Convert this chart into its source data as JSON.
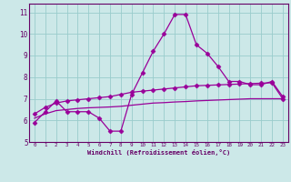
{
  "xlabel": "Windchill (Refroidissement éolien,°C)",
  "x_hours": [
    0,
    1,
    2,
    3,
    4,
    5,
    6,
    7,
    8,
    9,
    10,
    11,
    12,
    13,
    14,
    15,
    16,
    17,
    18,
    19,
    20,
    21,
    22,
    23
  ],
  "line1": [
    5.9,
    6.4,
    6.9,
    6.4,
    6.4,
    6.4,
    6.1,
    5.5,
    5.5,
    7.2,
    8.2,
    9.2,
    10.0,
    10.9,
    10.9,
    9.5,
    9.1,
    8.5,
    7.8,
    7.8,
    7.65,
    7.65,
    7.8,
    7.1
  ],
  "line2": [
    6.3,
    6.6,
    6.8,
    6.9,
    6.95,
    7.0,
    7.05,
    7.1,
    7.2,
    7.3,
    7.35,
    7.4,
    7.45,
    7.5,
    7.55,
    7.6,
    7.62,
    7.64,
    7.66,
    7.68,
    7.7,
    7.72,
    7.74,
    7.0
  ],
  "line3": [
    6.1,
    6.3,
    6.45,
    6.5,
    6.55,
    6.58,
    6.6,
    6.62,
    6.65,
    6.7,
    6.75,
    6.8,
    6.82,
    6.85,
    6.87,
    6.9,
    6.92,
    6.94,
    6.96,
    6.98,
    7.0,
    7.0,
    7.0,
    7.0
  ],
  "line_color": "#990099",
  "bg_color": "#cce8e8",
  "grid_color": "#99cccc",
  "axis_color": "#660066",
  "spine_color": "#660066",
  "ylim": [
    5.0,
    11.4
  ],
  "yticks": [
    5,
    6,
    7,
    8,
    9,
    10,
    11
  ],
  "xtick_labels": [
    "0",
    "1",
    "2",
    "3",
    "4",
    "5",
    "6",
    "7",
    "8",
    "9",
    "10",
    "11",
    "12",
    "13",
    "14",
    "15",
    "16",
    "17",
    "18",
    "19",
    "20",
    "21",
    "22",
    "23"
  ]
}
